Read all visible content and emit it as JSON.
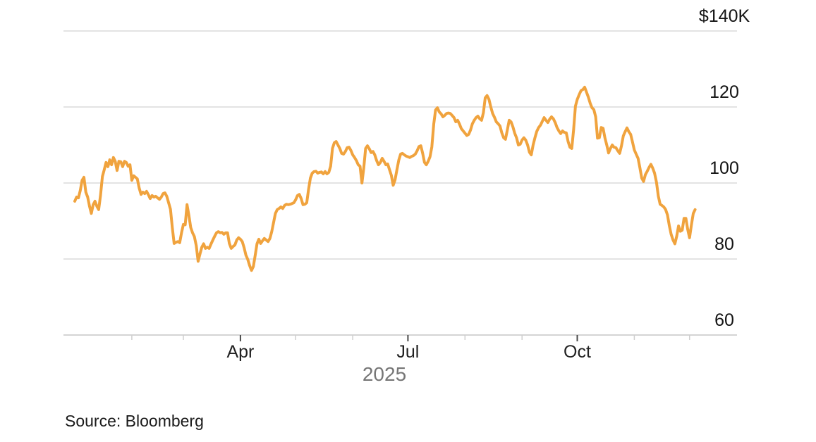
{
  "colors": {
    "background": "#ffffff",
    "line": "#F0A33E",
    "gridline": "#d2d2d2",
    "axis_line": "#c6c6c6",
    "tick_major": "#4a4a4a",
    "tick_minor": "#cfcfcf",
    "y_label": "#141414",
    "x_label": "#222222",
    "year_label": "#767676",
    "source_label": "#1a1a1a"
  },
  "footer": {
    "source_label": "Source: Bloomberg"
  },
  "chart_data": {
    "type": "line",
    "unit": "price in thousands of US dollars",
    "y_axis": {
      "range": [
        60,
        140
      ],
      "gridlines": true,
      "ticks": [
        {
          "label": "$140K",
          "value": 140
        },
        {
          "label": "120",
          "value": 120
        },
        {
          "label": "100",
          "value": 100
        },
        {
          "label": "80",
          "value": 80
        },
        {
          "label": "60",
          "value": 60
        }
      ]
    },
    "x_axis": {
      "domain_days": [
        0,
        337
      ],
      "year_label": "2025",
      "major_ticks": [
        {
          "label": "Apr",
          "day": 90
        },
        {
          "label": "Jul",
          "day": 181
        },
        {
          "label": "Oct",
          "day": 273
        }
      ],
      "minor_tick_days": [
        31,
        59,
        120,
        151,
        212,
        243,
        304,
        334
      ]
    },
    "series": {
      "points": [
        [
          0,
          95.2
        ],
        [
          1,
          96.3
        ],
        [
          2,
          96.1
        ],
        [
          3,
          98.0
        ],
        [
          4,
          100.7
        ],
        [
          5,
          101.5
        ],
        [
          6,
          97.6
        ],
        [
          7,
          96.3
        ],
        [
          8,
          93.9
        ],
        [
          9,
          92.0
        ],
        [
          10,
          94.3
        ],
        [
          11,
          95.2
        ],
        [
          12,
          93.9
        ],
        [
          13,
          93.0
        ],
        [
          14,
          96.7
        ],
        [
          15,
          101.7
        ],
        [
          16,
          103.5
        ],
        [
          17,
          105.4
        ],
        [
          18,
          104.3
        ],
        [
          19,
          106.1
        ],
        [
          20,
          104.8
        ],
        [
          21,
          106.7
        ],
        [
          22,
          105.7
        ],
        [
          23,
          103.3
        ],
        [
          24,
          105.7
        ],
        [
          25,
          105.6
        ],
        [
          26,
          104.3
        ],
        [
          27,
          105.7
        ],
        [
          28,
          105.4
        ],
        [
          29,
          104.4
        ],
        [
          30,
          104.8
        ],
        [
          31,
          100.7
        ],
        [
          32,
          101.9
        ],
        [
          33,
          101.5
        ],
        [
          34,
          101.1
        ],
        [
          35,
          98.7
        ],
        [
          36,
          97.0
        ],
        [
          37,
          97.6
        ],
        [
          38,
          97.2
        ],
        [
          39,
          97.8
        ],
        [
          40,
          96.9
        ],
        [
          41,
          95.9
        ],
        [
          42,
          96.7
        ],
        [
          43,
          96.3
        ],
        [
          44,
          96.5
        ],
        [
          45,
          96.1
        ],
        [
          46,
          95.7
        ],
        [
          47,
          96.3
        ],
        [
          48,
          97.2
        ],
        [
          49,
          97.4
        ],
        [
          50,
          96.5
        ],
        [
          51,
          94.8
        ],
        [
          52,
          93.1
        ],
        [
          53,
          88.3
        ],
        [
          54,
          84.1
        ],
        [
          55,
          84.4
        ],
        [
          56,
          84.6
        ],
        [
          57,
          84.3
        ],
        [
          58,
          86.9
        ],
        [
          59,
          89.1
        ],
        [
          60,
          89.0
        ],
        [
          61,
          94.3
        ],
        [
          62,
          91.5
        ],
        [
          63,
          88.3
        ],
        [
          64,
          86.9
        ],
        [
          65,
          85.9
        ],
        [
          66,
          83.5
        ],
        [
          67,
          79.4
        ],
        [
          68,
          81.3
        ],
        [
          69,
          83.1
        ],
        [
          70,
          84.0
        ],
        [
          71,
          82.8
        ],
        [
          72,
          83.1
        ],
        [
          73,
          82.8
        ],
        [
          74,
          83.9
        ],
        [
          75,
          85.0
        ],
        [
          76,
          86.0
        ],
        [
          77,
          86.9
        ],
        [
          78,
          87.2
        ],
        [
          79,
          86.9
        ],
        [
          80,
          87.0
        ],
        [
          81,
          86.5
        ],
        [
          82,
          86.9
        ],
        [
          83,
          86.9
        ],
        [
          84,
          84.1
        ],
        [
          85,
          82.8
        ],
        [
          86,
          83.3
        ],
        [
          87,
          83.7
        ],
        [
          88,
          85.0
        ],
        [
          89,
          85.6
        ],
        [
          90,
          85.2
        ],
        [
          91,
          84.6
        ],
        [
          92,
          83.0
        ],
        [
          93,
          81.0
        ],
        [
          94,
          79.9
        ],
        [
          95,
          78.3
        ],
        [
          96,
          77.0
        ],
        [
          97,
          78.0
        ],
        [
          98,
          80.9
        ],
        [
          99,
          84.0
        ],
        [
          100,
          85.2
        ],
        [
          101,
          84.1
        ],
        [
          102,
          84.8
        ],
        [
          103,
          85.4
        ],
        [
          104,
          85.0
        ],
        [
          105,
          84.6
        ],
        [
          106,
          85.4
        ],
        [
          107,
          87.2
        ],
        [
          108,
          89.6
        ],
        [
          109,
          92.0
        ],
        [
          110,
          93.0
        ],
        [
          111,
          93.3
        ],
        [
          112,
          93.7
        ],
        [
          113,
          93.3
        ],
        [
          114,
          94.1
        ],
        [
          115,
          94.4
        ],
        [
          116,
          94.3
        ],
        [
          117,
          94.4
        ],
        [
          118,
          94.6
        ],
        [
          119,
          94.8
        ],
        [
          120,
          95.6
        ],
        [
          121,
          96.7
        ],
        [
          122,
          97.0
        ],
        [
          123,
          95.9
        ],
        [
          124,
          94.3
        ],
        [
          125,
          94.4
        ],
        [
          126,
          94.8
        ],
        [
          127,
          98.3
        ],
        [
          128,
          101.3
        ],
        [
          129,
          102.6
        ],
        [
          130,
          103.0
        ],
        [
          131,
          103.1
        ],
        [
          132,
          102.6
        ],
        [
          133,
          102.8
        ],
        [
          134,
          102.9
        ],
        [
          135,
          102.4
        ],
        [
          136,
          103.0
        ],
        [
          137,
          102.4
        ],
        [
          138,
          102.8
        ],
        [
          139,
          104.4
        ],
        [
          140,
          109.1
        ],
        [
          141,
          110.6
        ],
        [
          142,
          110.9
        ],
        [
          143,
          110.0
        ],
        [
          144,
          109.1
        ],
        [
          145,
          107.8
        ],
        [
          146,
          107.6
        ],
        [
          147,
          108.3
        ],
        [
          148,
          109.3
        ],
        [
          149,
          109.4
        ],
        [
          150,
          108.6
        ],
        [
          151,
          107.4
        ],
        [
          152,
          106.7
        ],
        [
          153,
          105.9
        ],
        [
          154,
          104.8
        ],
        [
          155,
          104.4
        ],
        [
          156,
          100.0
        ],
        [
          157,
          104.0
        ],
        [
          158,
          109.1
        ],
        [
          159,
          109.8
        ],
        [
          160,
          109.0
        ],
        [
          161,
          108.0
        ],
        [
          162,
          108.3
        ],
        [
          163,
          107.4
        ],
        [
          164,
          105.9
        ],
        [
          165,
          104.8
        ],
        [
          166,
          105.4
        ],
        [
          167,
          106.5
        ],
        [
          168,
          105.7
        ],
        [
          169,
          104.8
        ],
        [
          170,
          105.0
        ],
        [
          171,
          103.5
        ],
        [
          172,
          102.0
        ],
        [
          173,
          99.4
        ],
        [
          174,
          100.8
        ],
        [
          175,
          103.5
        ],
        [
          176,
          106.0
        ],
        [
          177,
          107.6
        ],
        [
          178,
          107.8
        ],
        [
          179,
          107.4
        ],
        [
          180,
          107.1
        ],
        [
          181,
          106.9
        ],
        [
          182,
          106.7
        ],
        [
          183,
          107.0
        ],
        [
          184,
          107.2
        ],
        [
          185,
          107.6
        ],
        [
          186,
          108.5
        ],
        [
          187,
          109.6
        ],
        [
          188,
          109.8
        ],
        [
          189,
          107.8
        ],
        [
          190,
          105.4
        ],
        [
          191,
          104.8
        ],
        [
          192,
          105.7
        ],
        [
          193,
          106.9
        ],
        [
          194,
          109.5
        ],
        [
          195,
          115.5
        ],
        [
          196,
          119.2
        ],
        [
          197,
          119.8
        ],
        [
          198,
          118.7
        ],
        [
          199,
          118.2
        ],
        [
          200,
          117.4
        ],
        [
          201,
          117.8
        ],
        [
          202,
          118.3
        ],
        [
          203,
          118.4
        ],
        [
          204,
          118.3
        ],
        [
          205,
          117.8
        ],
        [
          206,
          117.2
        ],
        [
          207,
          116.1
        ],
        [
          208,
          116.5
        ],
        [
          209,
          115.5
        ],
        [
          210,
          114.3
        ],
        [
          211,
          113.7
        ],
        [
          212,
          113.1
        ],
        [
          213,
          112.5
        ],
        [
          214,
          112.8
        ],
        [
          215,
          113.9
        ],
        [
          216,
          115.6
        ],
        [
          217,
          116.5
        ],
        [
          218,
          117.2
        ],
        [
          219,
          117.6
        ],
        [
          220,
          116.9
        ],
        [
          221,
          116.5
        ],
        [
          222,
          118.5
        ],
        [
          223,
          122.4
        ],
        [
          224,
          123.0
        ],
        [
          225,
          122.0
        ],
        [
          226,
          120.0
        ],
        [
          227,
          118.3
        ],
        [
          228,
          117.3
        ],
        [
          229,
          116.1
        ],
        [
          230,
          115.6
        ],
        [
          231,
          115.0
        ],
        [
          232,
          113.2
        ],
        [
          233,
          111.9
        ],
        [
          234,
          111.5
        ],
        [
          235,
          114.0
        ],
        [
          236,
          116.5
        ],
        [
          237,
          116.1
        ],
        [
          238,
          114.8
        ],
        [
          239,
          113.1
        ],
        [
          240,
          111.9
        ],
        [
          241,
          110.0
        ],
        [
          242,
          110.2
        ],
        [
          243,
          111.3
        ],
        [
          244,
          111.9
        ],
        [
          245,
          111.3
        ],
        [
          246,
          110.0
        ],
        [
          247,
          108.1
        ],
        [
          248,
          107.4
        ],
        [
          249,
          110.0
        ],
        [
          250,
          111.9
        ],
        [
          251,
          113.6
        ],
        [
          252,
          114.6
        ],
        [
          253,
          115.2
        ],
        [
          254,
          116.2
        ],
        [
          255,
          117.2
        ],
        [
          256,
          116.5
        ],
        [
          257,
          115.9
        ],
        [
          258,
          116.8
        ],
        [
          259,
          117.4
        ],
        [
          260,
          116.9
        ],
        [
          261,
          115.9
        ],
        [
          262,
          114.6
        ],
        [
          263,
          113.7
        ],
        [
          264,
          113.0
        ],
        [
          265,
          113.7
        ],
        [
          266,
          113.3
        ],
        [
          267,
          113.2
        ],
        [
          268,
          110.9
        ],
        [
          269,
          109.4
        ],
        [
          270,
          109.1
        ],
        [
          271,
          114.0
        ],
        [
          272,
          120.2
        ],
        [
          273,
          122.0
        ],
        [
          274,
          123.2
        ],
        [
          275,
          124.3
        ],
        [
          276,
          124.6
        ],
        [
          277,
          125.2
        ],
        [
          278,
          123.9
        ],
        [
          279,
          122.6
        ],
        [
          280,
          121.0
        ],
        [
          281,
          119.8
        ],
        [
          282,
          119.3
        ],
        [
          283,
          117.4
        ],
        [
          284,
          111.8
        ],
        [
          285,
          111.9
        ],
        [
          286,
          114.6
        ],
        [
          287,
          114.4
        ],
        [
          288,
          111.9
        ],
        [
          289,
          110.0
        ],
        [
          290,
          107.9
        ],
        [
          291,
          109.1
        ],
        [
          292,
          110.0
        ],
        [
          293,
          109.4
        ],
        [
          294,
          109.3
        ],
        [
          295,
          108.5
        ],
        [
          296,
          107.8
        ],
        [
          297,
          109.8
        ],
        [
          298,
          112.4
        ],
        [
          299,
          113.5
        ],
        [
          300,
          114.5
        ],
        [
          301,
          113.5
        ],
        [
          302,
          112.8
        ],
        [
          303,
          110.8
        ],
        [
          304,
          108.7
        ],
        [
          305,
          107.6
        ],
        [
          306,
          106.5
        ],
        [
          307,
          104.0
        ],
        [
          308,
          101.3
        ],
        [
          309,
          100.4
        ],
        [
          310,
          102.2
        ],
        [
          311,
          103.1
        ],
        [
          312,
          104.1
        ],
        [
          313,
          104.9
        ],
        [
          314,
          103.9
        ],
        [
          315,
          102.6
        ],
        [
          316,
          100.2
        ],
        [
          317,
          96.6
        ],
        [
          318,
          94.4
        ],
        [
          319,
          94.1
        ],
        [
          320,
          93.7
        ],
        [
          321,
          93.0
        ],
        [
          322,
          91.6
        ],
        [
          323,
          88.8
        ],
        [
          324,
          86.5
        ],
        [
          325,
          85.0
        ],
        [
          326,
          84.0
        ],
        [
          327,
          86.0
        ],
        [
          328,
          88.7
        ],
        [
          329,
          87.3
        ],
        [
          330,
          87.6
        ],
        [
          331,
          90.7
        ],
        [
          332,
          90.7
        ],
        [
          333,
          87.8
        ],
        [
          334,
          85.6
        ],
        [
          335,
          88.9
        ],
        [
          336,
          92.0
        ],
        [
          337,
          93.0
        ]
      ]
    }
  }
}
